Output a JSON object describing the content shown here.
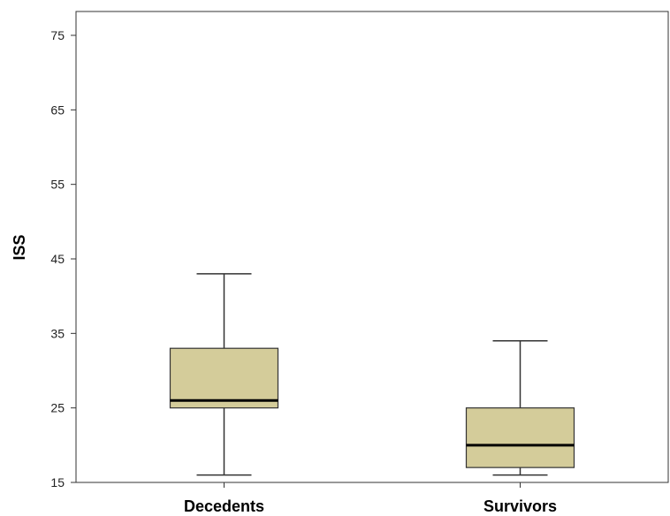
{
  "chart_data": {
    "type": "box",
    "title": "",
    "xlabel": "",
    "ylabel": "ISS",
    "ylim": [
      15,
      78
    ],
    "yticks": [
      15,
      25,
      35,
      45,
      55,
      65,
      75
    ],
    "categories": [
      "Decedents",
      "Survivors"
    ],
    "boxes": [
      {
        "category": "Decedents",
        "min": 16,
        "q1": 25,
        "median": 26,
        "q3": 33,
        "max": 43
      },
      {
        "category": "Survivors",
        "min": 16,
        "q1": 17,
        "median": 20,
        "q3": 25,
        "max": 34
      }
    ],
    "grid": false,
    "box_fill_color": "#d4cc9a",
    "box_stroke_color": "#333333"
  }
}
